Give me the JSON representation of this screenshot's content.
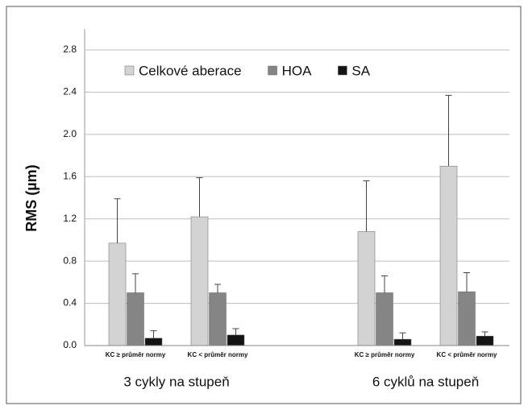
{
  "chart_data": {
    "type": "bar",
    "y_label": "RMS (µm)",
    "categories": [
      "KC ≥ průměr normy",
      "KC < průměr normy",
      "KC ≥ průměr normy",
      "KC < průměr normy"
    ],
    "group_labels": [
      "3 cykly na stupeň",
      "6 cyklů na stupeň"
    ],
    "series": [
      {
        "name": "Celkové aberace",
        "color": "#d3d3d3",
        "values": [
          0.97,
          1.22,
          1.08,
          1.7
        ],
        "errors": [
          0.42,
          0.37,
          0.48,
          0.67
        ]
      },
      {
        "name": "HOA",
        "color": "#858585",
        "values": [
          0.5,
          0.5,
          0.5,
          0.51
        ],
        "errors": [
          0.18,
          0.08,
          0.16,
          0.18
        ]
      },
      {
        "name": "SA",
        "color": "#141414",
        "values": [
          0.07,
          0.1,
          0.06,
          0.09
        ],
        "errors": [
          0.07,
          0.06,
          0.06,
          0.04
        ]
      }
    ],
    "ylim": [
      0,
      2.8
    ],
    "yticks": [
      {
        "value": 0,
        "label": "0.0"
      },
      0.4,
      0.8,
      1.2,
      1.6,
      {
        "value": 2,
        "label": "2.0"
      },
      2.4,
      2.8
    ],
    "grid": true
  }
}
